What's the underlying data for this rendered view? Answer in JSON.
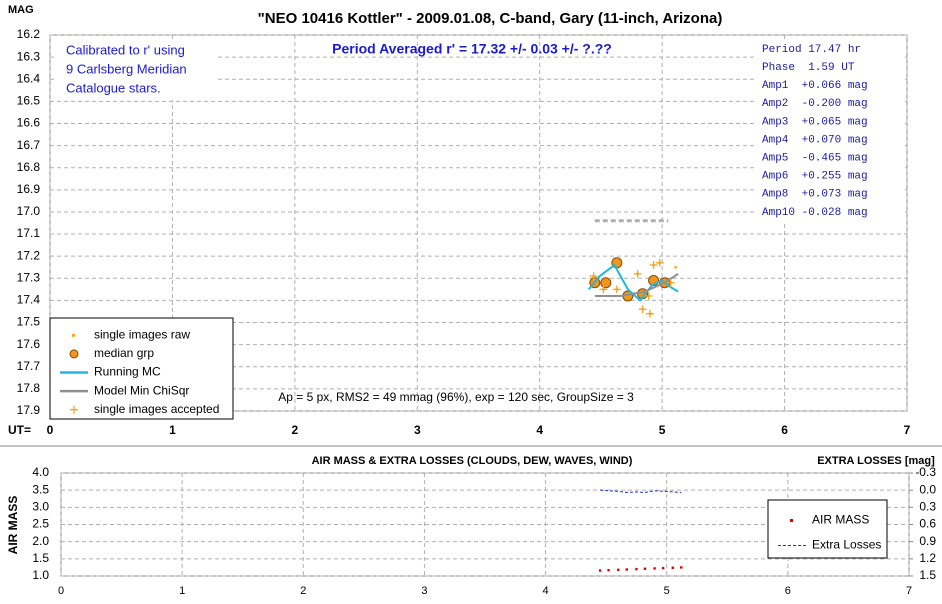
{
  "chart_data": [
    {
      "type": "scatter",
      "title": "\"NEO 10416 Kottler\" - 2009.01.08, C-band, Gary (11-inch, Arizona)",
      "y_label": "MAG",
      "x_label": "UT=",
      "headline": "Period Averaged r' = 17.32 +/- 0.03 +/- ?.??",
      "calibration_note": [
        "Calibrated to r' using",
        "9 Carlsberg Meridian",
        "Catalogue stars."
      ],
      "info_lines": [
        "Period 17.47 hr",
        "Phase  1.59 UT",
        "Amp1  +0.066 mag",
        "Amp2  -0.200 mag",
        "Amp3  +0.065 mag",
        "Amp4  +0.070 mag",
        "Amp5  -0.465 mag",
        "Amp6  +0.255 mag",
        "Amp8  +0.073 mag",
        "Amp10 -0.028 mag"
      ],
      "footnote": "Ap = 5 px, RMS2 = 49 mmag (96%), exp = 120 sec, GroupSize = 3",
      "xlim": [
        0,
        7
      ],
      "xticks": [
        0,
        1,
        2,
        3,
        4,
        5,
        6,
        7
      ],
      "ylim": [
        17.9,
        16.2
      ],
      "yticks": [
        16.2,
        16.3,
        16.4,
        16.5,
        16.6,
        16.7,
        16.8,
        16.9,
        {
          "value": 17,
          "label": "17.0"
        },
        17.1,
        17.2,
        17.3,
        17.4,
        17.5,
        17.6,
        17.7,
        17.8,
        17.9
      ],
      "grid": true,
      "legend": "lower left",
      "series": [
        {
          "name": "single images raw",
          "marker": "dot",
          "color": "#f5a623",
          "x": [
            4.44,
            4.52,
            4.63,
            4.8,
            4.84,
            4.89,
            4.9,
            4.93,
            4.98,
            5.07,
            5.11
          ],
          "values": [
            17.29,
            17.35,
            17.35,
            17.28,
            17.44,
            17.38,
            17.46,
            17.24,
            17.23,
            17.32,
            17.25
          ]
        },
        {
          "name": "median grp",
          "marker": "circle",
          "color": "#f0961e",
          "x": [
            4.45,
            4.54,
            4.63,
            4.72,
            4.84,
            4.93,
            5.02
          ],
          "values": [
            17.32,
            17.32,
            17.23,
            17.38,
            17.37,
            17.31,
            17.32
          ]
        },
        {
          "name": "Running MC",
          "marker": "line",
          "color": "#1fb8e0",
          "x": [
            4.4,
            4.49,
            4.61,
            4.72,
            4.82,
            4.92,
            5.0,
            5.07,
            5.13
          ],
          "values": [
            17.35,
            17.29,
            17.24,
            17.35,
            17.4,
            17.33,
            17.31,
            17.34,
            17.36
          ]
        },
        {
          "name": "Model Min ChiSqr",
          "marker": "line",
          "color": "#909090",
          "x": [
            4.45,
            4.66,
            4.86,
            5.02,
            5.13
          ],
          "values": [
            17.38,
            17.38,
            17.36,
            17.32,
            17.28
          ]
        },
        {
          "name": "single images accepted",
          "marker": "plus",
          "color": "#f5a623",
          "x": [
            4.44,
            4.52,
            4.63,
            4.8,
            4.84,
            4.89,
            4.9,
            4.93,
            4.98,
            5.07
          ],
          "values": [
            17.29,
            17.35,
            17.35,
            17.28,
            17.44,
            17.38,
            17.46,
            17.24,
            17.23,
            17.32
          ]
        },
        {
          "marker": "dash",
          "color": "#b0b0b0",
          "x": [
            4.45,
            5.05
          ],
          "values": [
            17.04,
            17.04
          ]
        }
      ]
    },
    {
      "type": "scatter",
      "title": "AIR MASS & EXTRA LOSSES (CLOUDS, DEW, WAVES, WIND)",
      "y_label": "AIR MASS",
      "y2_label": "EXTRA LOSSES [mag]",
      "xlim": [
        0,
        7
      ],
      "xticks": [
        0,
        1,
        2,
        3,
        4,
        5,
        6,
        7
      ],
      "ylim": [
        1,
        4
      ],
      "yticks": [
        {
          "value": 1,
          "label": "1.0"
        },
        1.5,
        {
          "value": 2,
          "label": "2.0"
        },
        2.5,
        {
          "value": 3,
          "label": "3.0"
        },
        3.5,
        {
          "value": 4,
          "label": "4.0"
        }
      ],
      "y2lim": [
        1.5,
        -0.3
      ],
      "y2ticks": [
        -0.3,
        {
          "value": 0,
          "label": "0.0"
        },
        0.3,
        0.6,
        0.9,
        1.2,
        1.5
      ],
      "grid": true,
      "legend": "right",
      "series": [
        {
          "name": "AIR MASS",
          "marker": "dot",
          "color": "#e00000",
          "x": [
            4.45,
            4.52,
            4.6,
            4.67,
            4.75,
            4.82,
            4.9,
            4.97,
            5.05,
            5.12
          ],
          "values": [
            1.16,
            1.17,
            1.18,
            1.19,
            1.2,
            1.21,
            1.22,
            1.23,
            1.24,
            1.25
          ]
        },
        {
          "name": "Extra Losses",
          "marker": "line",
          "axis": "y2",
          "color": "#1a2fd0",
          "x": [
            4.45,
            4.52,
            4.6,
            4.67,
            4.75,
            4.82,
            4.9,
            4.97,
            5.05,
            5.12
          ],
          "values": [
            0.0,
            0.01,
            0.02,
            0.04,
            0.03,
            0.04,
            0.01,
            0.02,
            0.03,
            0.04
          ]
        }
      ]
    }
  ]
}
